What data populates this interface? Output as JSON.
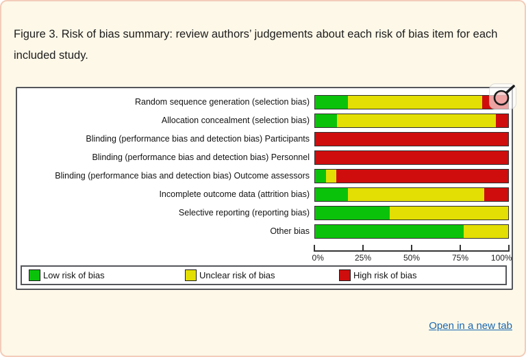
{
  "page": {
    "title": "Figure 3. Risk of bias summary: review authors’ judgements about each risk of bias item for each included study.",
    "link_label": "Open in a new tab"
  },
  "colors": {
    "page_background": "#fdf8e8",
    "page_border": "#f3ccb9",
    "chart_border": "#54555a",
    "bar_border": "#2e2e2e",
    "link": "#1a67b0",
    "low_risk_green": "#0bc20b",
    "unclear_risk_yellow": "#e3df04",
    "high_risk_red": "#cf0d0d"
  },
  "icons": {
    "magnifier": "magnifier-zoom-icon"
  },
  "chart_data": {
    "type": "bar",
    "stacked": true,
    "orientation": "horizontal",
    "categories": [
      "Random sequence generation (selection bias)",
      "Allocation concealment (selection bias)",
      "Blinding (performance bias and detection bias) Participants",
      "Blinding (performance bias and detection bias) Personnel",
      "Blinding (performance bias and detection bias) Outcome assessors",
      "Incomplete outcome data (attrition bias)",
      "Selective reporting (reporting bias)",
      "Other bias"
    ],
    "series": [
      {
        "key": "low",
        "name": "Low risk of bias",
        "color": "#0bc20b",
        "values": [
          17,
          11.3,
          0,
          0,
          5.5,
          17,
          38.5,
          77
        ]
      },
      {
        "key": "unclear",
        "name": "Unclear risk of bias",
        "color": "#e3df04",
        "values": [
          69.5,
          82.2,
          0,
          0,
          5.5,
          70.5,
          61.5,
          23
        ]
      },
      {
        "key": "high",
        "name": "High risk of bias",
        "color": "#cf0d0d",
        "values": [
          13.5,
          6.5,
          100,
          100,
          89,
          12.5,
          0,
          0
        ]
      }
    ],
    "xlim": [
      0,
      100
    ],
    "x_ticks": [
      "0%",
      "25%",
      "50%",
      "75%",
      "100%"
    ],
    "x_tick_positions": [
      0,
      25,
      50,
      75,
      100
    ],
    "legend_position": "bottom-boxed",
    "grid": false
  }
}
